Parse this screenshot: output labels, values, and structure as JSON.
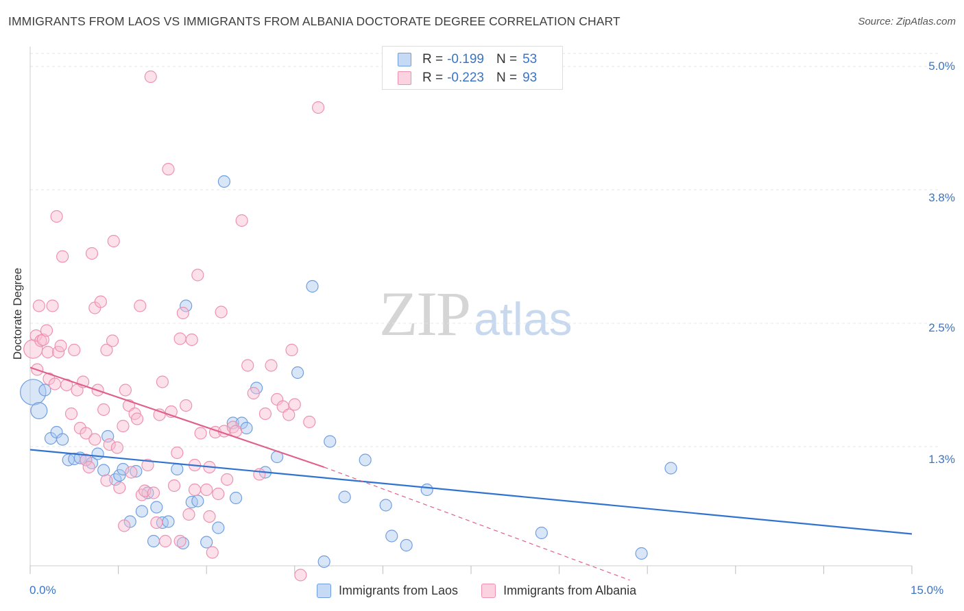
{
  "title": "IMMIGRANTS FROM LAOS VS IMMIGRANTS FROM ALBANIA DOCTORATE DEGREE CORRELATION CHART",
  "source": "Source: ZipAtlas.com",
  "watermark": {
    "zip": "ZIP",
    "atlas": "atlas"
  },
  "legend": {
    "r_label": "R =",
    "n_label": "N =",
    "rows": [
      {
        "r": "-0.199",
        "n": "53"
      },
      {
        "r": "-0.223",
        "n": "93"
      }
    ]
  },
  "colors": {
    "laos_fill": "#aac8f0",
    "laos_stroke": "#6f9ee0",
    "laos_line": "#2f72d0",
    "albania_fill": "#f8bcd0",
    "albania_stroke": "#ee90b0",
    "albania_line": "#e0608a",
    "tick_text": "#3a74c4",
    "grid": "#e4e4e4"
  },
  "chart_data": {
    "type": "scatter",
    "title": "IMMIGRANTS FROM LAOS VS IMMIGRANTS FROM ALBANIA DOCTORATE DEGREE CORRELATION CHART",
    "xlabel": "",
    "ylabel": "Doctorate Degree",
    "xlim": [
      0,
      15
    ],
    "ylim": [
      0,
      5.2
    ],
    "x_tick_labels": [
      "0.0%",
      "15.0%"
    ],
    "x_ticks_minor": [
      0,
      1.5,
      3,
      4.5,
      6,
      7.5,
      9,
      10.5,
      12,
      13.5,
      15
    ],
    "y_ticks": [
      1.3,
      2.5,
      3.8,
      5.0
    ],
    "y_tick_labels": [
      "1.3%",
      "2.5%",
      "3.8%",
      "5.0%"
    ],
    "grid": "horizontal dashed",
    "legend_position": "top-center",
    "series": [
      {
        "name": "Immigrants from Laos",
        "color": "#6f9ee0",
        "trend": {
          "x": [
            0,
            15
          ],
          "y": [
            1.27,
            0.45
          ]
        },
        "points": [
          [
            0.05,
            1.83,
            2.2
          ],
          [
            0.15,
            1.65,
            1.4
          ],
          [
            0.25,
            1.85,
            1.0
          ],
          [
            0.35,
            1.38,
            1.0
          ],
          [
            0.45,
            1.44,
            1.0
          ],
          [
            0.55,
            1.37,
            1.0
          ],
          [
            0.65,
            1.17,
            1.0
          ],
          [
            0.75,
            1.18,
            1.0
          ],
          [
            0.85,
            1.19,
            1.0
          ],
          [
            0.95,
            1.17,
            1.0
          ],
          [
            1.05,
            1.14,
            1.0
          ],
          [
            1.15,
            1.23,
            1.0
          ],
          [
            1.25,
            1.07,
            1.0
          ],
          [
            1.32,
            1.4,
            1.0
          ],
          [
            1.45,
            0.98,
            1.0
          ],
          [
            1.52,
            1.02,
            1.0
          ],
          [
            1.58,
            1.08,
            1.0
          ],
          [
            1.7,
            0.57,
            1.0
          ],
          [
            1.8,
            1.06,
            1.0
          ],
          [
            1.9,
            0.67,
            1.0
          ],
          [
            2.0,
            0.85,
            1.0
          ],
          [
            2.1,
            0.38,
            1.0
          ],
          [
            2.15,
            0.71,
            1.0
          ],
          [
            2.25,
            0.56,
            1.0
          ],
          [
            2.35,
            0.57,
            1.0
          ],
          [
            2.5,
            1.08,
            1.0
          ],
          [
            2.6,
            0.36,
            1.0
          ],
          [
            2.65,
            2.67,
            1.0
          ],
          [
            2.75,
            0.76,
            1.0
          ],
          [
            2.85,
            0.77,
            1.0
          ],
          [
            3.0,
            0.37,
            1.0
          ],
          [
            3.2,
            0.51,
            1.0
          ],
          [
            3.3,
            3.88,
            1.0
          ],
          [
            3.45,
            1.53,
            1.0
          ],
          [
            3.5,
            0.8,
            1.0
          ],
          [
            3.6,
            1.53,
            1.0
          ],
          [
            3.68,
            1.48,
            1.0
          ],
          [
            3.85,
            1.87,
            1.0
          ],
          [
            4.0,
            1.05,
            1.0
          ],
          [
            4.2,
            1.2,
            1.0
          ],
          [
            4.55,
            2.02,
            1.0
          ],
          [
            4.8,
            2.86,
            1.0
          ],
          [
            5.0,
            0.18,
            1.0
          ],
          [
            5.1,
            1.35,
            1.0
          ],
          [
            5.35,
            0.81,
            1.0
          ],
          [
            5.7,
            1.17,
            1.0
          ],
          [
            6.05,
            0.73,
            1.0
          ],
          [
            6.15,
            0.43,
            1.0
          ],
          [
            6.4,
            0.34,
            1.0
          ],
          [
            6.75,
            0.88,
            1.0
          ],
          [
            8.7,
            0.46,
            1.0
          ],
          [
            10.4,
            0.26,
            1.0
          ],
          [
            10.9,
            1.09,
            1.0
          ]
        ]
      },
      {
        "name": "Immigrants from Albania",
        "color": "#ee90b0",
        "trend": {
          "x": [
            0,
            5
          ],
          "y": [
            2.07,
            1.1
          ]
        },
        "trend_dashed": {
          "x": [
            5,
            10.2
          ],
          "y": [
            1.1,
            0.0
          ]
        },
        "points": [
          [
            0.05,
            2.25,
            1.6
          ],
          [
            0.1,
            2.38,
            1.0
          ],
          [
            0.12,
            2.05,
            1.0
          ],
          [
            0.15,
            2.67,
            1.0
          ],
          [
            0.18,
            2.33,
            1.0
          ],
          [
            0.22,
            2.34,
            1.0
          ],
          [
            0.28,
            2.43,
            1.0
          ],
          [
            0.3,
            2.22,
            1.0
          ],
          [
            0.32,
            1.96,
            1.0
          ],
          [
            0.38,
            2.67,
            1.0
          ],
          [
            0.42,
            1.91,
            1.0
          ],
          [
            0.45,
            3.54,
            1.0
          ],
          [
            0.48,
            2.22,
            1.0
          ],
          [
            0.52,
            2.28,
            1.0
          ],
          [
            0.55,
            3.15,
            1.0
          ],
          [
            0.62,
            1.9,
            1.0
          ],
          [
            0.7,
            1.62,
            1.0
          ],
          [
            0.75,
            2.24,
            1.0
          ],
          [
            0.8,
            1.85,
            1.0
          ],
          [
            0.85,
            1.48,
            1.0
          ],
          [
            0.9,
            1.93,
            1.0
          ],
          [
            0.95,
            1.17,
            1.0
          ],
          [
            1.0,
            1.1,
            1.0
          ],
          [
            1.05,
            3.18,
            1.0
          ],
          [
            1.1,
            2.65,
            1.0
          ],
          [
            1.15,
            1.85,
            1.0
          ],
          [
            1.2,
            2.71,
            1.0
          ],
          [
            1.25,
            1.66,
            1.0
          ],
          [
            1.3,
            2.24,
            1.0
          ],
          [
            1.35,
            1.32,
            1.0
          ],
          [
            1.42,
            3.3,
            1.0
          ],
          [
            1.48,
            1.29,
            1.0
          ],
          [
            1.52,
            0.9,
            1.0
          ],
          [
            1.58,
            1.5,
            1.0
          ],
          [
            1.6,
            0.53,
            1.0
          ],
          [
            1.62,
            1.85,
            1.0
          ],
          [
            1.68,
            1.7,
            1.0
          ],
          [
            1.72,
            1.05,
            1.0
          ],
          [
            1.78,
            1.62,
            1.0
          ],
          [
            1.82,
            1.57,
            1.0
          ],
          [
            1.9,
            0.83,
            1.0
          ],
          [
            1.95,
            0.87,
            1.0
          ],
          [
            2.0,
            1.12,
            1.0
          ],
          [
            2.05,
            4.9,
            1.0
          ],
          [
            2.1,
            0.85,
            1.0
          ],
          [
            2.15,
            0.56,
            1.0
          ],
          [
            2.2,
            1.61,
            1.0
          ],
          [
            2.25,
            1.93,
            1.0
          ],
          [
            2.3,
            0.38,
            1.0
          ],
          [
            2.35,
            4.0,
            1.0
          ],
          [
            2.4,
            1.64,
            1.0
          ],
          [
            2.45,
            0.92,
            1.0
          ],
          [
            2.5,
            1.24,
            1.0
          ],
          [
            2.55,
            2.35,
            1.0
          ],
          [
            2.6,
            2.6,
            1.0
          ],
          [
            2.65,
            1.7,
            1.0
          ],
          [
            2.7,
            0.64,
            1.0
          ],
          [
            2.75,
            2.34,
            1.0
          ],
          [
            2.8,
            0.88,
            1.0
          ],
          [
            2.85,
            2.97,
            1.0
          ],
          [
            2.9,
            1.43,
            1.0
          ],
          [
            3.0,
            0.88,
            1.0
          ],
          [
            3.05,
            1.1,
            1.0
          ],
          [
            3.1,
            0.27,
            1.0
          ],
          [
            3.15,
            1.44,
            1.0
          ],
          [
            3.2,
            0.84,
            1.0
          ],
          [
            3.25,
            2.61,
            1.0
          ],
          [
            3.3,
            1.45,
            1.0
          ],
          [
            3.35,
            0.98,
            1.0
          ],
          [
            3.45,
            1.49,
            1.0
          ],
          [
            3.5,
            1.45,
            1.0
          ],
          [
            3.6,
            3.5,
            1.0
          ],
          [
            3.7,
            2.09,
            1.0
          ],
          [
            3.8,
            1.82,
            1.0
          ],
          [
            3.9,
            1.03,
            1.0
          ],
          [
            4.0,
            1.62,
            1.0
          ],
          [
            4.1,
            2.09,
            1.0
          ],
          [
            4.2,
            1.76,
            1.0
          ],
          [
            4.3,
            1.69,
            1.0
          ],
          [
            4.4,
            1.61,
            1.0
          ],
          [
            4.45,
            2.24,
            1.0
          ],
          [
            4.5,
            1.71,
            1.0
          ],
          [
            4.6,
            0.05,
            1.0
          ],
          [
            4.75,
            1.54,
            1.0
          ],
          [
            4.9,
            4.6,
            1.0
          ],
          [
            1.87,
            2.67,
            1.0
          ],
          [
            1.4,
            2.33,
            1.0
          ],
          [
            0.95,
            1.43,
            1.0
          ],
          [
            1.1,
            1.37,
            1.0
          ],
          [
            2.55,
            0.38,
            1.0
          ],
          [
            3.05,
            0.62,
            1.0
          ],
          [
            2.8,
            1.12,
            1.0
          ],
          [
            1.3,
            0.97,
            1.0
          ]
        ]
      }
    ]
  },
  "axes": {
    "ylabel": "Doctorate Degree",
    "x_tick_labels": [
      "0.0%",
      "15.0%"
    ],
    "y_tick_labels": [
      "1.3%",
      "2.5%",
      "3.8%",
      "5.0%"
    ]
  },
  "bottom_legend": [
    "Immigrants from Laos",
    "Immigrants from Albania"
  ]
}
